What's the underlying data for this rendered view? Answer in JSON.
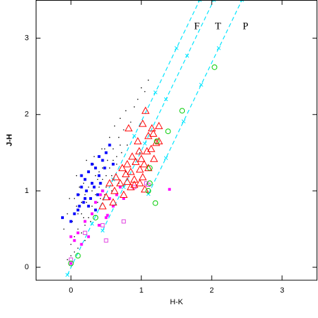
{
  "chart_data": {
    "type": "scatter",
    "x_label": "H-K",
    "y_label": "J-H",
    "xlim": [
      -0.5,
      3.5
    ],
    "ylim": [
      -0.17,
      3.5
    ],
    "xticks": [
      0,
      1,
      2,
      3
    ],
    "yticks": [
      0,
      1,
      2,
      3
    ],
    "annotations": [
      {
        "text": "F",
        "x": 1.79,
        "y": 3.15
      },
      {
        "text": "T",
        "x": 2.09,
        "y": 3.15
      },
      {
        "text": "P",
        "x": 2.48,
        "y": 3.15
      }
    ],
    "lines": [
      {
        "color": "#00e5ff",
        "x": [
          -0.05,
          0.3,
          0.6,
          0.9,
          1.2,
          1.5,
          1.83
        ],
        "y": [
          -0.1,
          0.57,
          1.15,
          1.72,
          2.29,
          2.87,
          3.5
        ]
      },
      {
        "color": "#00e5ff",
        "x": [
          0.45,
          0.75,
          1.05,
          1.35,
          1.65,
          2.03
        ],
        "y": [
          0.48,
          1.05,
          1.62,
          2.2,
          2.77,
          3.5
        ]
      },
      {
        "color": "#00e5ff",
        "x": [
          1.1,
          1.35,
          1.6,
          1.85,
          2.1,
          2.43
        ],
        "y": [
          0.96,
          1.43,
          1.91,
          2.39,
          2.87,
          3.5
        ]
      }
    ],
    "series": [
      {
        "marker": "dot",
        "color": "#000000",
        "x": [
          -0.05,
          0.0,
          0.02,
          0.05,
          0.08,
          0.1,
          0.12,
          0.15,
          0.18,
          0.2,
          0.22,
          0.25,
          0.28,
          0.3,
          0.32,
          0.35,
          0.38,
          0.4,
          0.42,
          0.45,
          0.48,
          0.5,
          0.52,
          0.55,
          0.58,
          0.6,
          0.62,
          0.65,
          0.68,
          0.7,
          0.72,
          0.75,
          0.78,
          0.8,
          0.85,
          0.9,
          0.95,
          1.0,
          1.05,
          1.1,
          0.0,
          0.05,
          0.1,
          0.15,
          0.2,
          0.25,
          0.3,
          0.35,
          0.4,
          0.45,
          0.5,
          0.55,
          0.6,
          0.65,
          0.7,
          0.1,
          0.15,
          0.2,
          0.25,
          0.3,
          0.35,
          0.4,
          -0.1,
          -0.05,
          0.05,
          0.12,
          0.18,
          0.28,
          0.38,
          0.48,
          0.58,
          0.68,
          0.78,
          0.88,
          0.98,
          -0.02,
          0.08,
          0.22,
          0.33,
          0.44
        ],
        "y": [
          0.1,
          0.3,
          0.6,
          0.4,
          0.8,
          0.5,
          0.95,
          0.7,
          1.1,
          0.35,
          0.85,
          1.25,
          0.6,
          1.0,
          1.35,
          0.75,
          1.15,
          1.45,
          0.9,
          1.3,
          1.55,
          1.05,
          1.4,
          1.7,
          1.2,
          1.55,
          1.85,
          1.35,
          1.7,
          1.95,
          1.5,
          1.8,
          2.05,
          1.6,
          1.9,
          2.1,
          2.2,
          2.35,
          2.3,
          2.45,
          0.15,
          0.2,
          0.25,
          0.45,
          0.55,
          0.65,
          0.8,
          0.95,
          1.05,
          1.15,
          1.2,
          1.3,
          1.4,
          1.45,
          1.6,
          0.7,
          0.85,
          0.95,
          1.05,
          1.1,
          1.2,
          1.25,
          0.5,
          0.7,
          0.9,
          1.05,
          0.65,
          0.9,
          0.85,
          0.95,
          1.0,
          1.1,
          1.25,
          1.35,
          1.5,
          0.9,
          1.2,
          1.4,
          1.45,
          1.55
        ]
      },
      {
        "marker": "square",
        "color": "#0000ff",
        "x": [
          0.1,
          0.15,
          0.2,
          0.25,
          0.3,
          0.35,
          0.4,
          0.45,
          0.5,
          0.12,
          0.18,
          0.22,
          0.28,
          0.33,
          0.38,
          0.42,
          0.48,
          0.05,
          0.1,
          0.2,
          0.3,
          0.4,
          0.15,
          0.25,
          0.35,
          0.55,
          -0.12,
          0.0,
          0.6,
          0.45
        ],
        "y": [
          0.95,
          1.05,
          1.15,
          1.25,
          1.1,
          1.3,
          1.2,
          1.4,
          1.5,
          0.8,
          0.85,
          1.0,
          0.9,
          1.05,
          0.95,
          1.1,
          1.3,
          0.7,
          0.75,
          0.9,
          1.35,
          1.45,
          1.2,
          0.8,
          0.75,
          1.6,
          0.65,
          0.6,
          1.35,
          1.0
        ]
      },
      {
        "marker": "square",
        "color": "#ff00ff",
        "x": [
          0.0,
          0.05,
          0.1,
          0.15,
          0.2,
          0.3,
          0.4,
          0.5,
          0.55,
          0.6,
          0.65,
          0.7,
          0.45,
          0.35,
          0.25,
          0.75,
          0.52,
          1.4,
          0.0,
          0.42
        ],
        "y": [
          0.05,
          0.35,
          0.45,
          0.3,
          0.6,
          0.7,
          0.55,
          0.65,
          0.9,
          0.8,
          0.95,
          1.05,
          1.0,
          0.85,
          0.4,
          0.9,
          0.68,
          1.02,
          0.4,
          0.95
        ]
      },
      {
        "marker": "open-square",
        "color": "#e040e0",
        "x": [
          1.07,
          0.9,
          0.75,
          0.45,
          0.2,
          0.0,
          0.5,
          1.1
        ],
        "y": [
          1.1,
          1.05,
          0.6,
          0.55,
          0.45,
          0.1,
          0.35,
          1.08
        ]
      },
      {
        "marker": "triangle",
        "color": "#ff0000",
        "x": [
          1.06,
          1.02,
          0.82,
          1.15,
          1.1,
          1.17,
          1.25,
          1.25,
          1.21,
          0.95,
          0.97,
          1.08,
          1.14,
          0.87,
          1.0,
          0.92,
          1.04,
          1.18,
          0.8,
          0.73,
          0.85,
          0.98,
          1.1,
          0.64,
          0.78,
          0.9,
          1.02,
          0.55,
          0.7,
          0.85,
          0.98,
          1.05,
          0.62,
          0.75,
          0.5,
          0.6,
          0.45,
          0.9,
          0.8
        ],
        "y": [
          2.05,
          1.88,
          1.82,
          1.82,
          1.72,
          1.75,
          1.85,
          1.65,
          1.63,
          1.65,
          1.52,
          1.52,
          1.55,
          1.45,
          1.42,
          1.38,
          1.35,
          1.42,
          1.35,
          1.3,
          1.25,
          1.28,
          1.3,
          1.18,
          1.22,
          1.15,
          1.18,
          1.1,
          1.1,
          1.05,
          1.1,
          1.02,
          1.0,
          0.95,
          0.92,
          0.85,
          0.8,
          1.08,
          1.12
        ]
      },
      {
        "marker": "circle",
        "color": "#00cc00",
        "x": [
          2.04,
          1.58,
          1.38,
          1.22,
          1.12,
          1.12,
          1.1,
          1.2,
          0.35,
          0.1,
          0.0
        ],
        "y": [
          2.62,
          2.05,
          1.78,
          1.65,
          1.3,
          1.1,
          1.0,
          0.84,
          0.65,
          0.15,
          0.05
        ]
      }
    ]
  }
}
